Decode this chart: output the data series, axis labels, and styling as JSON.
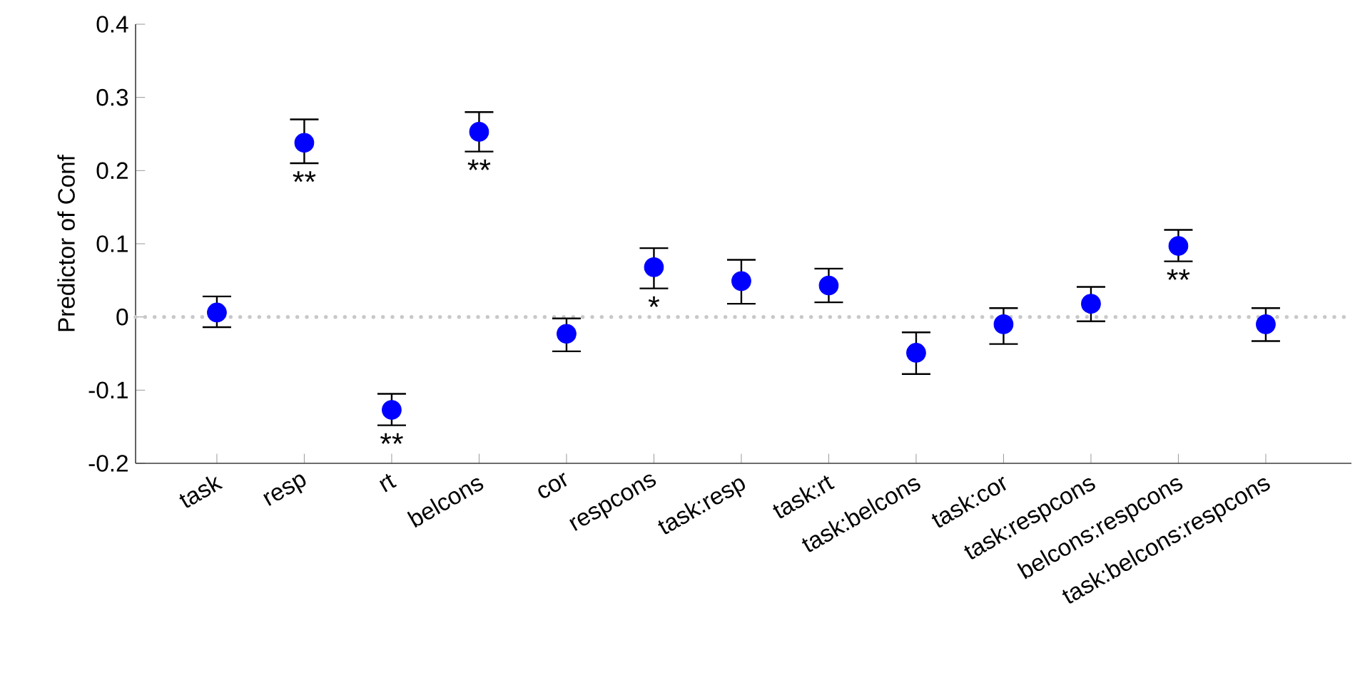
{
  "chart_data": {
    "type": "scatter",
    "ylabel": "Predictor of Conf",
    "categories": [
      "task",
      "resp",
      "rt",
      "belcons",
      "cor",
      "respcons",
      "task:resp",
      "task:rt",
      "task:belcons",
      "task:cor",
      "task:respcons",
      "belcons:respcons",
      "task:belcons:respcons"
    ],
    "series": [
      {
        "color": "#0000ff",
        "values": [
          0.006,
          0.238,
          -0.127,
          0.253,
          -0.023,
          0.068,
          0.049,
          0.043,
          -0.049,
          -0.01,
          0.018,
          0.097,
          -0.01
        ],
        "errors": [
          [
            -0.014,
            0.028
          ],
          [
            0.21,
            0.27
          ],
          [
            -0.148,
            -0.105
          ],
          [
            0.226,
            0.28
          ],
          [
            -0.047,
            -0.002
          ],
          [
            0.039,
            0.094
          ],
          [
            0.018,
            0.078
          ],
          [
            0.02,
            0.066
          ],
          [
            -0.078,
            -0.021
          ],
          [
            -0.037,
            0.012
          ],
          [
            -0.006,
            0.041
          ],
          [
            0.076,
            0.119
          ],
          [
            -0.033,
            0.012
          ]
        ],
        "value_labels": [
          null,
          "**",
          "**",
          "**",
          null,
          "*",
          null,
          null,
          null,
          null,
          null,
          "**",
          null
        ]
      }
    ],
    "marker": "circle",
    "ylim": [
      -0.2,
      0.4
    ],
    "yticks": [
      -0.2,
      -0.1,
      0,
      0.1,
      0.2,
      0.3,
      0.4
    ],
    "ref_lines": [
      {
        "axis": "y",
        "value": 0,
        "color": "#c8c8c8",
        "line_style": "dotted"
      }
    ]
  }
}
